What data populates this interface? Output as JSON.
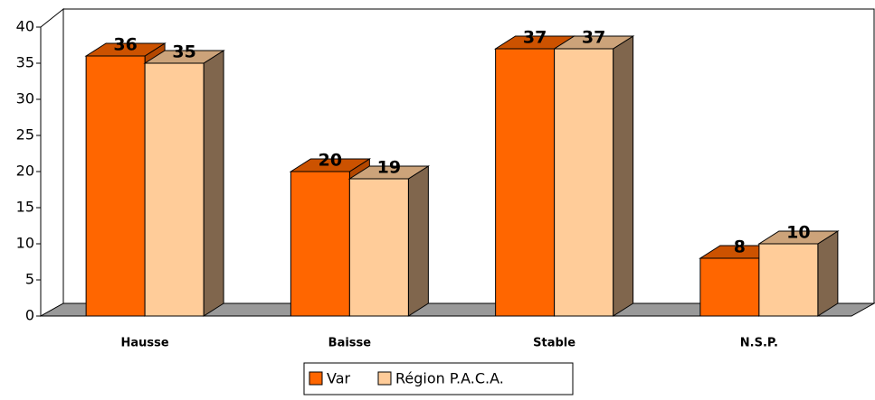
{
  "chart_data": {
    "type": "bar3d",
    "categories": [
      "Hausse",
      "Baisse",
      "Stable",
      "N.S.P."
    ],
    "series": [
      {
        "name": "Var",
        "color": "#ff6600",
        "values": [
          36,
          20,
          37,
          8
        ]
      },
      {
        "name": "Région P.A.C.A.",
        "color": "#ffcc99",
        "values": [
          35,
          19,
          37,
          10
        ]
      }
    ],
    "ylim": [
      0,
      40
    ],
    "yticks": [
      0,
      5,
      10,
      15,
      20,
      25,
      30,
      35,
      40
    ]
  }
}
